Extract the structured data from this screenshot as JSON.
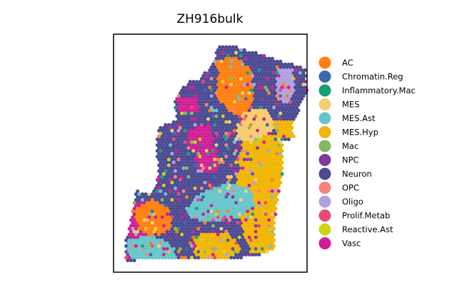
{
  "chart_data": {
    "type": "scatter",
    "title": "ZH916bulk",
    "xlabel": "",
    "ylabel": "",
    "grid": false,
    "axes_ticks": false,
    "legend_placement": "right",
    "legend": [
      {
        "name": "AC",
        "color": "#ff7f0e"
      },
      {
        "name": "Chromatin.Reg",
        "color": "#3a6aaa"
      },
      {
        "name": "Inflammatory.Mac",
        "color": "#16a07a"
      },
      {
        "name": "MES",
        "color": "#f5cd70"
      },
      {
        "name": "MES.Ast",
        "color": "#66c5cc"
      },
      {
        "name": "MES.Hyp",
        "color": "#f1b500"
      },
      {
        "name": "Mac",
        "color": "#83b95f"
      },
      {
        "name": "NPC",
        "color": "#7d3c98"
      },
      {
        "name": "Neuron",
        "color": "#4c4a92"
      },
      {
        "name": "OPC",
        "color": "#f7837a"
      },
      {
        "name": "Oligo",
        "color": "#b0a0e0"
      },
      {
        "name": "Prolif.Metab",
        "color": "#e64a78"
      },
      {
        "name": "Reactive.Ast",
        "color": "#cdd416"
      },
      {
        "name": "Vasc",
        "color": "#d11d95"
      }
    ]
  }
}
